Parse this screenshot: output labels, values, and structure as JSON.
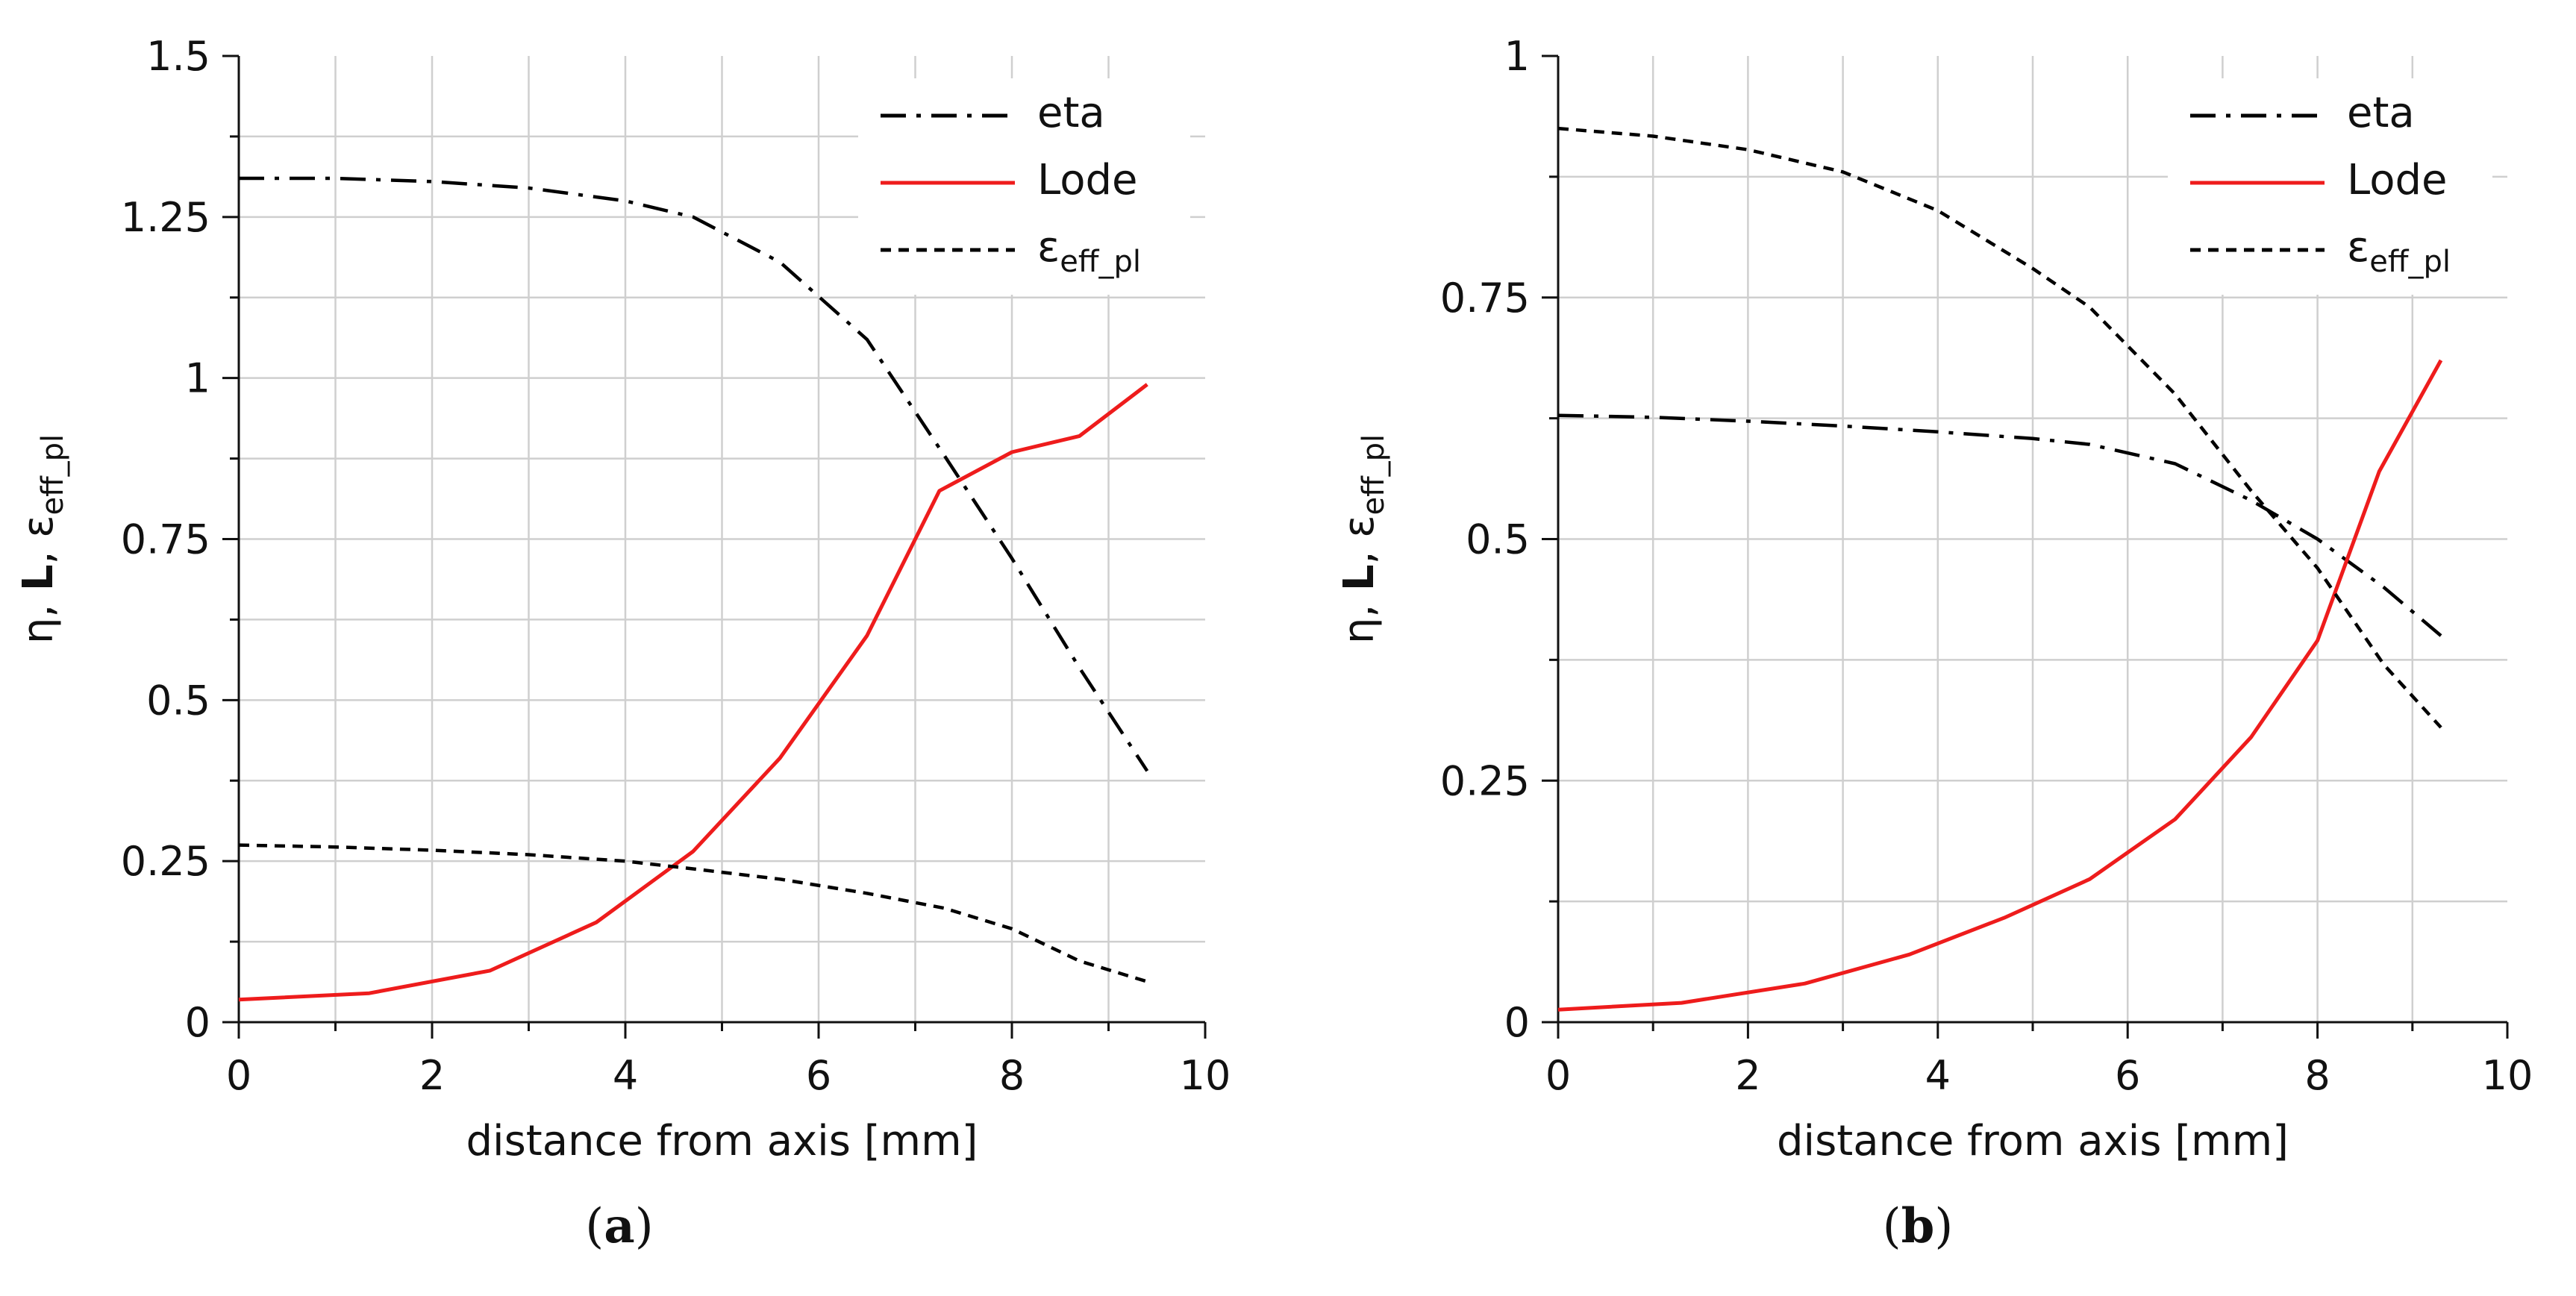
{
  "chart_data": [
    {
      "type": "line",
      "caption": "(a)",
      "caption_letter": "a",
      "xlabel": "distance from axis [mm]",
      "ylabel_parts": [
        "η, ",
        "L",
        ", ε",
        "eff_pl"
      ],
      "xlim": [
        0,
        10
      ],
      "ylim": [
        0,
        1.5
      ],
      "xticks": [
        0,
        2,
        4,
        6,
        8,
        10
      ],
      "yticks": [
        0,
        0.25,
        0.5,
        0.75,
        1,
        1.25,
        1.5
      ],
      "ytick_labels": [
        "0",
        "0.25",
        "0.5",
        "0.75",
        "1",
        "1.25",
        "1.5"
      ],
      "grid_minor_x": 1,
      "grid_minor_y": 0.125,
      "legend_position": "top-right",
      "series": [
        {
          "name": "eta",
          "label": "eta",
          "style": "dashdot",
          "color": "#000000",
          "x": [
            0,
            1,
            2,
            3,
            4,
            4.7,
            5.6,
            6.5,
            7.3,
            8,
            8.7,
            9.4
          ],
          "y": [
            1.31,
            1.31,
            1.305,
            1.295,
            1.275,
            1.25,
            1.18,
            1.06,
            0.88,
            0.72,
            0.55,
            0.39
          ]
        },
        {
          "name": "Lode",
          "label": "Lode",
          "style": "solid",
          "color": "#ee1c1c",
          "x": [
            0,
            1.35,
            2.6,
            3.7,
            4.7,
            5.6,
            6.5,
            7.25,
            8,
            8.7,
            9.4
          ],
          "y": [
            0.035,
            0.045,
            0.08,
            0.155,
            0.265,
            0.41,
            0.6,
            0.825,
            0.885,
            0.91,
            0.99
          ]
        },
        {
          "name": "eps_eff_pl",
          "label_main": "ε",
          "label_sub": "eff_pl",
          "style": "dashed",
          "color": "#000000",
          "x": [
            0,
            1,
            2,
            3,
            4,
            4.7,
            5.6,
            6.5,
            7.3,
            8,
            8.7,
            9.4
          ],
          "y": [
            0.275,
            0.272,
            0.267,
            0.26,
            0.25,
            0.238,
            0.222,
            0.2,
            0.177,
            0.145,
            0.095,
            0.063
          ]
        }
      ]
    },
    {
      "type": "line",
      "caption": "(b)",
      "caption_letter": "b",
      "xlabel": "distance from axis [mm]",
      "ylabel_parts": [
        "η, ",
        "L",
        ", ε",
        "eff_pl"
      ],
      "xlim": [
        0,
        10
      ],
      "ylim": [
        0,
        1
      ],
      "xticks": [
        0,
        2,
        4,
        6,
        8,
        10
      ],
      "yticks": [
        0,
        0.25,
        0.5,
        0.75,
        1
      ],
      "ytick_labels": [
        "0",
        "0.25",
        "0.5",
        "0.75",
        "1"
      ],
      "grid_minor_x": 1,
      "grid_minor_y": 0.125,
      "legend_position": "top-right",
      "series": [
        {
          "name": "eta",
          "label": "eta",
          "style": "dashdot",
          "color": "#000000",
          "x": [
            0,
            1,
            2,
            3,
            4,
            5,
            5.6,
            6.5,
            7.3,
            8,
            8.7,
            9.3
          ],
          "y": [
            0.628,
            0.626,
            0.622,
            0.617,
            0.611,
            0.604,
            0.598,
            0.578,
            0.54,
            0.5,
            0.45,
            0.4
          ]
        },
        {
          "name": "Lode",
          "label": "Lode",
          "style": "solid",
          "color": "#ee1c1c",
          "x": [
            0,
            1.3,
            2.6,
            3.7,
            4.7,
            5.6,
            6.5,
            7.3,
            8,
            8.65,
            9.3
          ],
          "y": [
            0.013,
            0.02,
            0.04,
            0.07,
            0.108,
            0.148,
            0.21,
            0.295,
            0.395,
            0.57,
            0.685
          ]
        },
        {
          "name": "eps_eff_pl",
          "label_main": "ε",
          "label_sub": "eff_pl",
          "style": "dashed",
          "color": "#000000",
          "x": [
            0,
            1,
            2,
            3,
            4,
            5,
            5.6,
            6.5,
            7.3,
            8,
            8.7,
            9.3
          ],
          "y": [
            0.925,
            0.917,
            0.903,
            0.88,
            0.84,
            0.78,
            0.74,
            0.65,
            0.55,
            0.47,
            0.37,
            0.305
          ]
        }
      ]
    }
  ]
}
